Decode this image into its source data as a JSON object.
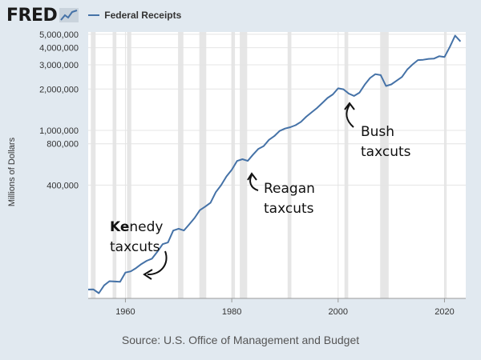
{
  "header": {
    "logo_text": "FRED",
    "logo_icon": "trend-line-icon",
    "legend_label": "Federal Receipts",
    "legend_color": "#4572a7"
  },
  "source": "Source: U.S. Office of Management and Budget",
  "chart_data": {
    "type": "line",
    "title": "",
    "xlabel": "",
    "ylabel": "Millions of Dollars",
    "y_scale": "log",
    "xlim": [
      1953,
      2024
    ],
    "ylim": [
      60000,
      5200000
    ],
    "grid": true,
    "legend_position": "top",
    "x_ticks": [
      1960,
      1980,
      2000,
      2020
    ],
    "y_ticks": [
      {
        "value": 400000,
        "label": "400,000"
      },
      {
        "value": 800000,
        "label": "800,000"
      },
      {
        "value": 1000000,
        "label": "1,000,000"
      },
      {
        "value": 2000000,
        "label": "2,000,000"
      },
      {
        "value": 3000000,
        "label": "3,000,000"
      },
      {
        "value": 4000000,
        "label": "4,000,000"
      },
      {
        "value": 5000000,
        "label": "5,000,000"
      }
    ],
    "recessions": [
      [
        1953.5,
        1954.4
      ],
      [
        1957.6,
        1958.3
      ],
      [
        1960.3,
        1961.1
      ],
      [
        1969.9,
        1970.9
      ],
      [
        1973.9,
        1975.2
      ],
      [
        1980.0,
        1980.6
      ],
      [
        1981.5,
        1982.9
      ],
      [
        1990.5,
        1991.2
      ],
      [
        2001.2,
        2001.9
      ],
      [
        2007.9,
        2009.5
      ],
      [
        2020.1,
        2020.4
      ]
    ],
    "series": [
      {
        "color": "#4572a7",
        "x": [
          1953,
          1954,
          1955,
          1956,
          1957,
          1958,
          1959,
          1960,
          1961,
          1962,
          1963,
          1964,
          1965,
          1966,
          1967,
          1968,
          1969,
          1970,
          1971,
          1972,
          1973,
          1974,
          1975,
          1976,
          1977,
          1978,
          1979,
          1980,
          1981,
          1982,
          1983,
          1984,
          1985,
          1986,
          1987,
          1988,
          1989,
          1990,
          1991,
          1992,
          1993,
          1994,
          1995,
          1996,
          1997,
          1998,
          1999,
          2000,
          2001,
          2002,
          2003,
          2004,
          2005,
          2006,
          2007,
          2008,
          2009,
          2010,
          2011,
          2012,
          2013,
          2014,
          2015,
          2016,
          2017,
          2018,
          2019,
          2020,
          2021,
          2022,
          2023
        ],
        "y": [
          69600,
          69700,
          65500,
          74600,
          80000,
          79600,
          79200,
          92500,
          94400,
          99700,
          106600,
          112600,
          116800,
          130800,
          148800,
          153000,
          186900,
          192800,
          187100,
          207300,
          230800,
          263200,
          279100,
          298100,
          355600,
          399600,
          463300,
          517100,
          599300,
          617800,
          600600,
          666400,
          734000,
          769200,
          854300,
          909200,
          991100,
          1032000,
          1055000,
          1091200,
          1154300,
          1258600,
          1351800,
          1453100,
          1579200,
          1721700,
          1827500,
          2025200,
          1991100,
          1853100,
          1782300,
          1880100,
          2153600,
          2406900,
          2568000,
          2524000,
          2105000,
          2162700,
          2303500,
          2450000,
          2775100,
          3021500,
          3249900,
          3268000,
          3316200,
          3329900,
          3463400,
          3421200,
          4047100,
          4897400,
          4439300
        ]
      }
    ],
    "annotations": [
      {
        "lines": [
          "Kenedy",
          "taxcuts"
        ],
        "bold_prefix": "Ke"
      },
      {
        "lines": [
          "Reagan",
          "taxcuts"
        ]
      },
      {
        "lines": [
          "Bush",
          "taxcuts"
        ]
      }
    ]
  }
}
